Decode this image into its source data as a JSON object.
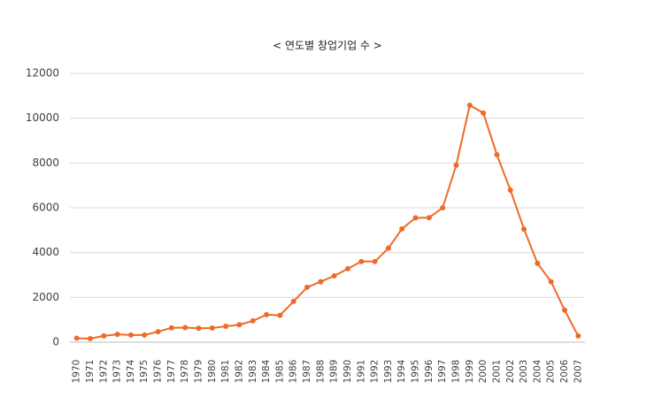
{
  "chart_data": {
    "type": "line",
    "title": "< 연도별 창업기업 수 >",
    "categories": [
      "1970",
      "1971",
      "1972",
      "1973",
      "1974",
      "1975",
      "1976",
      "1977",
      "1978",
      "1979",
      "1980",
      "1981",
      "1982",
      "1983",
      "1984",
      "1985",
      "1986",
      "1987",
      "1988",
      "1989",
      "1990",
      "1991",
      "1992",
      "1993",
      "1994",
      "1995",
      "1996",
      "1997",
      "1998",
      "1999",
      "2000",
      "2001",
      "2002",
      "2003",
      "2004",
      "2005",
      "2006",
      "2007"
    ],
    "values": [
      180,
      160,
      280,
      350,
      320,
      320,
      470,
      640,
      650,
      620,
      630,
      710,
      780,
      950,
      1230,
      1200,
      1820,
      2450,
      2700,
      2960,
      3280,
      3600,
      3600,
      4200,
      5060,
      5550,
      5560,
      6000,
      7900,
      10580,
      10230,
      8370,
      6790,
      5050,
      3520,
      2700,
      1430,
      280
    ],
    "color": "#ed6b27",
    "ylim": [
      0,
      12000
    ],
    "yticks": [
      0,
      2000,
      4000,
      6000,
      8000,
      10000,
      12000
    ],
    "grid": true
  }
}
